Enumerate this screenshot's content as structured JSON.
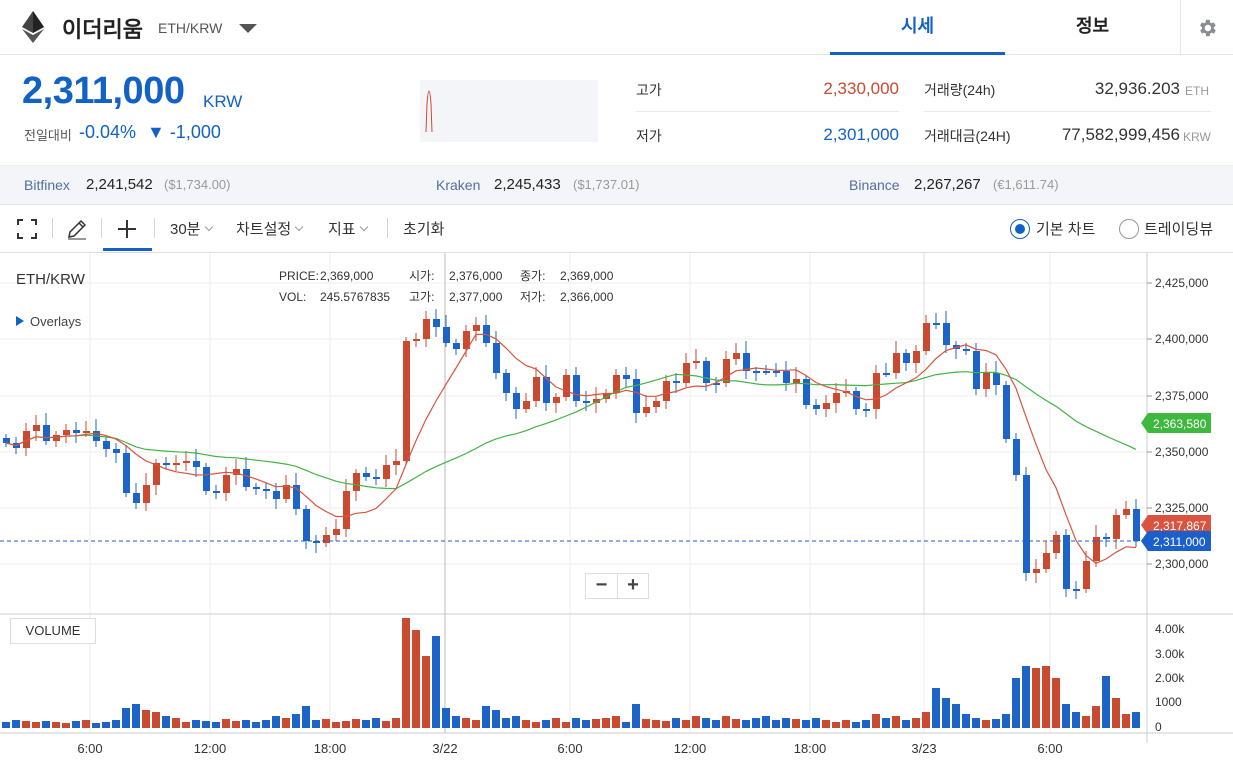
{
  "header": {
    "coin_name": "이더리움",
    "coin_pair": "ETH/KRW",
    "tabs": [
      {
        "label": "시세"
      },
      {
        "label": "정보"
      }
    ]
  },
  "price": {
    "current": "2,311,000",
    "unit": "KRW",
    "change_label": "전일대비",
    "change_pct": "-0.04%",
    "change_abs": "▼ -1,000"
  },
  "stats": {
    "high_label": "고가",
    "high_value": "2,330,000",
    "low_label": "저가",
    "low_value": "2,301,000",
    "volume_label": "거래량(24h)",
    "volume_value": "32,936.203",
    "volume_unit": "ETH",
    "amount_label": "거래대금(24H)",
    "amount_value": "77,582,999,456",
    "amount_unit": "KRW"
  },
  "exchanges": [
    {
      "name": "Bitfinex",
      "value": "2,241,542",
      "ref": "($1,734.00)"
    },
    {
      "name": "Kraken",
      "value": "2,245,433",
      "ref": "($1,737.01)"
    },
    {
      "name": "Binance",
      "value": "2,267,267",
      "ref": "(€1,611.74)"
    }
  ],
  "toolbar": {
    "interval": "30분",
    "chart_settings": "차트설정",
    "indicators": "지표",
    "reset": "초기화",
    "basic_chart": "기본 차트",
    "tradingview": "트레이딩뷰"
  },
  "chart": {
    "symbol": "ETH/KRW",
    "overlays_label": "Overlays",
    "info": {
      "price_label": "PRICE:",
      "price": "2,369,000",
      "vol_label": "VOL:",
      "vol": "245.5767835",
      "open_label": "시가:",
      "open": "2,376,000",
      "high_label": "고가:",
      "high": "2,377,000",
      "close_label": "종가:",
      "close": "2,369,000",
      "low_label": "저가:",
      "low": "2,366,000"
    },
    "volume_label": "VOLUME",
    "price_axis": [
      "2,425,000",
      "2,400,000",
      "2,375,000",
      "2,350,000",
      "2,325,000",
      "2,300,000"
    ],
    "volume_axis": [
      "4.00k",
      "3.00k",
      "2.00k",
      "1000",
      "0"
    ],
    "time_axis": [
      "6:00",
      "12:00",
      "18:00",
      "3/22",
      "6:00",
      "12:00",
      "18:00",
      "3/23",
      "6:00"
    ],
    "badges": [
      {
        "label": "2,363,580",
        "color": "#3fb83f"
      },
      {
        "label": "2,317,867",
        "color": "#d9533f"
      },
      {
        "label": "2,311,000",
        "color": "#1b5fcb"
      }
    ],
    "zoom_out": "−",
    "zoom_in": "+"
  },
  "colors": {
    "up": "#c84a31",
    "down": "#1d64c6",
    "ma_short": "#d9533f",
    "ma_long": "#43b443",
    "accent": "#1261c4"
  }
}
